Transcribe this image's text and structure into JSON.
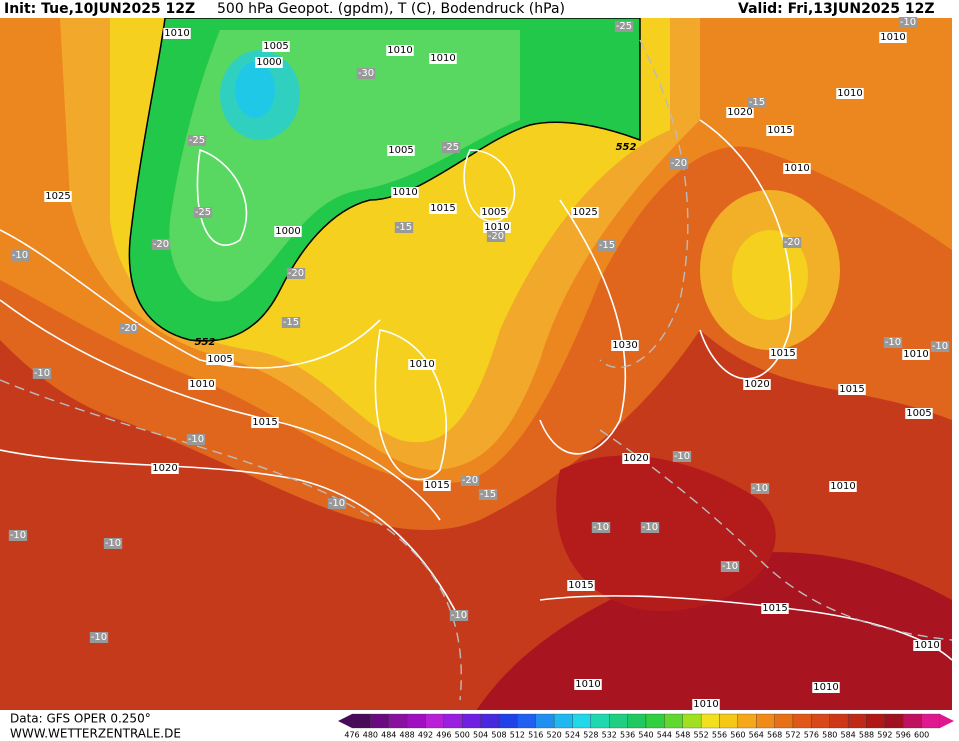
{
  "header": {
    "init": "Init: Tue,10JUN2025 12Z",
    "title": "500 hPa Geopot. (gpdm), T (C), Bodendruck (hPa)",
    "valid": "Valid: Fri,13JUN2025 12Z"
  },
  "map_labels": {
    "isobars": [
      "1010",
      "1005",
      "1000",
      "1010",
      "1010",
      "1010",
      "1010",
      "1020",
      "1015",
      "1025",
      "1005",
      "1010",
      "1015",
      "1005",
      "1010",
      "1000",
      "1025",
      "1010",
      "1030",
      "1005",
      "1010",
      "1010",
      "1015",
      "1010",
      "1015",
      "1020",
      "1005",
      "1015",
      "1020",
      "1020",
      "1015",
      "1010",
      "1015",
      "1015",
      "1010",
      "1010",
      "1010",
      "1010"
    ],
    "temperatures": [
      "-25",
      "-10",
      "-30",
      "-15",
      "-25",
      "-25",
      "-20",
      "-25",
      "-15",
      "-20",
      "-15",
      "-20",
      "-20",
      "-10",
      "-20",
      "-15",
      "-20",
      "-10",
      "-10",
      "-10",
      "-10",
      "-10",
      "-20",
      "-15",
      "-10",
      "-10",
      "-10",
      "-10",
      "-10",
      "-10",
      "-10",
      "-10",
      "-10"
    ],
    "geopotential": [
      "552",
      "552"
    ]
  },
  "footer": {
    "data": "Data: GFS OPER 0.250°",
    "site": "WWW.WETTERZENTRALE.DE"
  },
  "legend": {
    "values": [
      476,
      480,
      484,
      488,
      492,
      496,
      500,
      504,
      508,
      512,
      516,
      520,
      524,
      528,
      532,
      536,
      540,
      544,
      548,
      552,
      556,
      560,
      564,
      568,
      572,
      576,
      580,
      584,
      588,
      592,
      596,
      600
    ],
    "colors": [
      "#4a0a5a",
      "#6a0a80",
      "#8a10a0",
      "#a010c0",
      "#b820d8",
      "#9a20e0",
      "#7020e0",
      "#4a28e0",
      "#2040e8",
      "#2060f0",
      "#2090f0",
      "#20b8f0",
      "#20d8e8",
      "#20d8b0",
      "#20d080",
      "#20c860",
      "#30d040",
      "#60d830",
      "#a0e020",
      "#f0e020",
      "#f5c818",
      "#f5a818",
      "#f08a18",
      "#e87018",
      "#e05818",
      "#d84818",
      "#cc3818",
      "#c02818",
      "#b01818",
      "#a01020",
      "#c01060",
      "#e01890"
    ]
  }
}
